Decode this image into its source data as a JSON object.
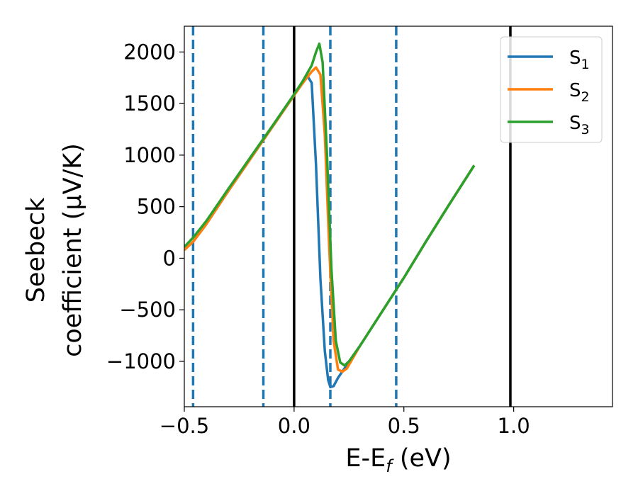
{
  "chart_data": {
    "type": "line",
    "xlabel": "E-E",
    "xlabel_sub": "f",
    "xlabel_unit": " (eV)",
    "ylabel_line1": "Seebeck",
    "ylabel_line2": "coefficient  (μV/K)",
    "xlim": [
      -0.5,
      1.45
    ],
    "ylim": [
      -1440,
      2250
    ],
    "x_ticks": [
      -0.5,
      0.0,
      0.5,
      1.0
    ],
    "x_tick_labels": [
      "−0.5",
      "0.0",
      "0.5",
      "1.0"
    ],
    "y_ticks": [
      -1000,
      -500,
      0,
      500,
      1000,
      1500,
      2000
    ],
    "y_tick_labels": [
      "−1000",
      "−500",
      "0",
      "500",
      "1000",
      "1500",
      "2000"
    ],
    "grid": false,
    "legend_position": "top-right",
    "vertical_lines": [
      {
        "x": -0.46,
        "style": "dashed",
        "color": "#1f77b4"
      },
      {
        "x": -0.14,
        "style": "dashed",
        "color": "#1f77b4"
      },
      {
        "x": 0.0,
        "style": "solid",
        "color": "#000000"
      },
      {
        "x": 0.165,
        "style": "dashed",
        "color": "#1f77b4"
      },
      {
        "x": 0.465,
        "style": "dashed",
        "color": "#1f77b4"
      },
      {
        "x": 0.985,
        "style": "solid",
        "color": "#000000"
      }
    ],
    "series": [
      {
        "name": "S",
        "sub": "1",
        "color": "#1f77b4",
        "points": [
          [
            -0.5,
            80
          ],
          [
            -0.46,
            160
          ],
          [
            -0.4,
            330
          ],
          [
            -0.3,
            650
          ],
          [
            -0.2,
            960
          ],
          [
            -0.1,
            1270
          ],
          [
            0.0,
            1580
          ],
          [
            0.03,
            1680
          ],
          [
            0.06,
            1770
          ],
          [
            0.08,
            1700
          ],
          [
            0.1,
            900
          ],
          [
            0.12,
            -200
          ],
          [
            0.14,
            -900
          ],
          [
            0.155,
            -1180
          ],
          [
            0.165,
            -1250
          ],
          [
            0.18,
            -1240
          ],
          [
            0.2,
            -1160
          ],
          [
            0.3,
            -850
          ],
          [
            0.4,
            -520
          ],
          [
            0.5,
            -190
          ],
          [
            0.6,
            160
          ],
          [
            0.7,
            500
          ],
          [
            0.82,
            900
          ]
        ]
      },
      {
        "name": "S",
        "sub": "2",
        "color": "#ff7f0e",
        "points": [
          [
            -0.5,
            80
          ],
          [
            -0.46,
            160
          ],
          [
            -0.4,
            330
          ],
          [
            -0.3,
            650
          ],
          [
            -0.2,
            960
          ],
          [
            -0.1,
            1270
          ],
          [
            0.0,
            1580
          ],
          [
            0.04,
            1700
          ],
          [
            0.08,
            1810
          ],
          [
            0.1,
            1850
          ],
          [
            0.12,
            1780
          ],
          [
            0.14,
            1200
          ],
          [
            0.16,
            100
          ],
          [
            0.18,
            -800
          ],
          [
            0.2,
            -1080
          ],
          [
            0.22,
            -1100
          ],
          [
            0.24,
            -1070
          ],
          [
            0.3,
            -850
          ],
          [
            0.4,
            -520
          ],
          [
            0.5,
            -190
          ],
          [
            0.6,
            160
          ],
          [
            0.7,
            500
          ],
          [
            0.82,
            900
          ]
        ]
      },
      {
        "name": "S",
        "sub": "3",
        "color": "#2ca02c",
        "points": [
          [
            -0.5,
            110
          ],
          [
            -0.46,
            200
          ],
          [
            -0.4,
            360
          ],
          [
            -0.3,
            670
          ],
          [
            -0.2,
            975
          ],
          [
            -0.1,
            1280
          ],
          [
            0.0,
            1590
          ],
          [
            0.04,
            1720
          ],
          [
            0.08,
            1870
          ],
          [
            0.1,
            2000
          ],
          [
            0.115,
            2080
          ],
          [
            0.13,
            1900
          ],
          [
            0.15,
            1000
          ],
          [
            0.17,
            -100
          ],
          [
            0.19,
            -800
          ],
          [
            0.21,
            -1010
          ],
          [
            0.23,
            -1040
          ],
          [
            0.25,
            -1000
          ],
          [
            0.3,
            -850
          ],
          [
            0.4,
            -520
          ],
          [
            0.5,
            -190
          ],
          [
            0.6,
            160
          ],
          [
            0.7,
            500
          ],
          [
            0.82,
            900
          ]
        ]
      }
    ]
  }
}
